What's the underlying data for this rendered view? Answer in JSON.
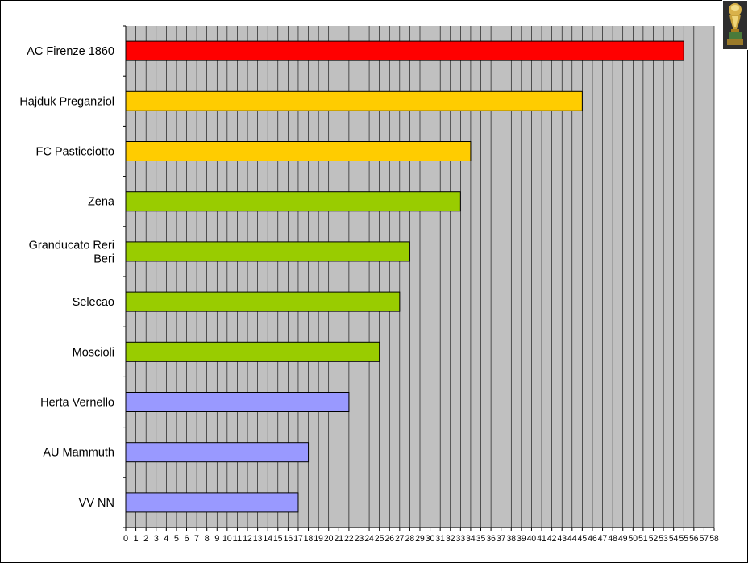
{
  "chart_data": {
    "type": "bar",
    "orientation": "horizontal",
    "categories": [
      "AC Firenze 1860",
      "Hajduk Preganziol",
      "FC Pasticciotto",
      "Zena",
      "Granducato Reri Beri",
      "Selecao",
      "Moscioli",
      "Herta Vernello",
      "AU Mammuth",
      "VV NN"
    ],
    "category_lines": [
      [
        "AC Firenze 1860"
      ],
      [
        "Hajduk Preganziol"
      ],
      [
        "FC Pasticciotto"
      ],
      [
        "Zena"
      ],
      [
        "Granducato Reri",
        "Beri"
      ],
      [
        "Selecao"
      ],
      [
        "Moscioli"
      ],
      [
        "Herta Vernello"
      ],
      [
        "AU Mammuth"
      ],
      [
        "VV NN"
      ]
    ],
    "values": [
      55,
      45,
      34,
      33,
      28,
      27,
      25,
      22,
      18,
      17
    ],
    "bar_colors": [
      "#ff0000",
      "#ffcc00",
      "#ffcc00",
      "#99cc00",
      "#99cc00",
      "#99cc00",
      "#99cc00",
      "#9999ff",
      "#9999ff",
      "#9999ff"
    ],
    "xlim": [
      0,
      58
    ],
    "x_ticks": [
      0,
      1,
      2,
      3,
      4,
      5,
      6,
      7,
      8,
      9,
      10,
      11,
      12,
      13,
      14,
      15,
      16,
      17,
      18,
      19,
      20,
      21,
      22,
      23,
      24,
      25,
      26,
      27,
      28,
      29,
      30,
      31,
      32,
      33,
      34,
      35,
      36,
      37,
      38,
      39,
      40,
      41,
      42,
      43,
      44,
      45,
      46,
      47,
      48,
      49,
      50,
      51,
      52,
      53,
      54,
      55,
      56,
      57,
      58
    ],
    "grid": "vertical",
    "plot_background": "#c0c0c0",
    "title": "",
    "xlabel": "",
    "ylabel": "",
    "legend": "none"
  },
  "decoration": {
    "trophy_icon": "trophy-icon"
  }
}
